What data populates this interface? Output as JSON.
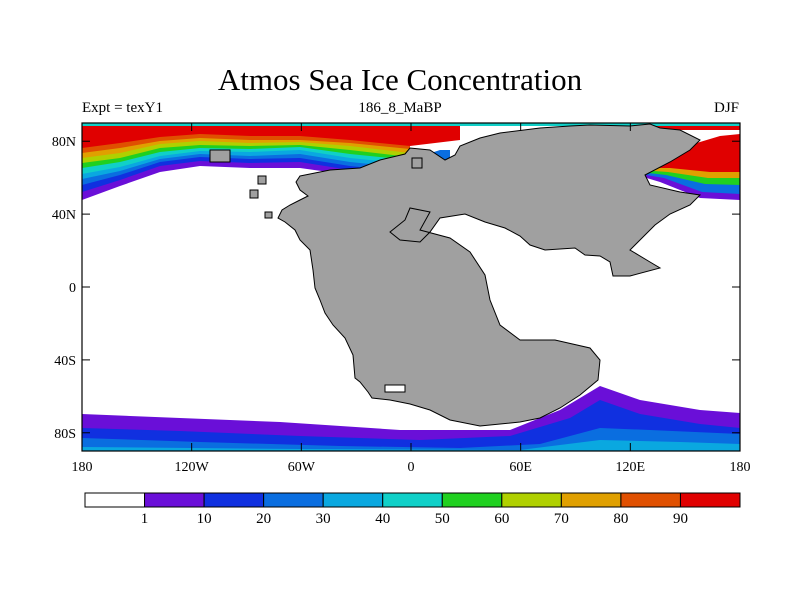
{
  "title": "Atmos Sea Ice Concentration",
  "subtitle_left": "Expt = texY1",
  "subtitle_center": "186_8_MaBP",
  "subtitle_right": "DJF",
  "x_ticks": [
    "180",
    "120W",
    "60W",
    "0",
    "60E",
    "120E",
    "180"
  ],
  "y_ticks": [
    "80N",
    "40N",
    "0",
    "40S",
    "80S"
  ],
  "colorbar": {
    "colors": [
      "#ffffff",
      "#6a0fd8",
      "#1030e0",
      "#0a6ee0",
      "#0aa8e0",
      "#10d0c8",
      "#20d020",
      "#b0d000",
      "#e0a000",
      "#e05000",
      "#e00000"
    ],
    "labels": [
      "1",
      "10",
      "20",
      "30",
      "40",
      "50",
      "60",
      "70",
      "80",
      "90"
    ]
  },
  "land_color": "#a0a0a0"
}
